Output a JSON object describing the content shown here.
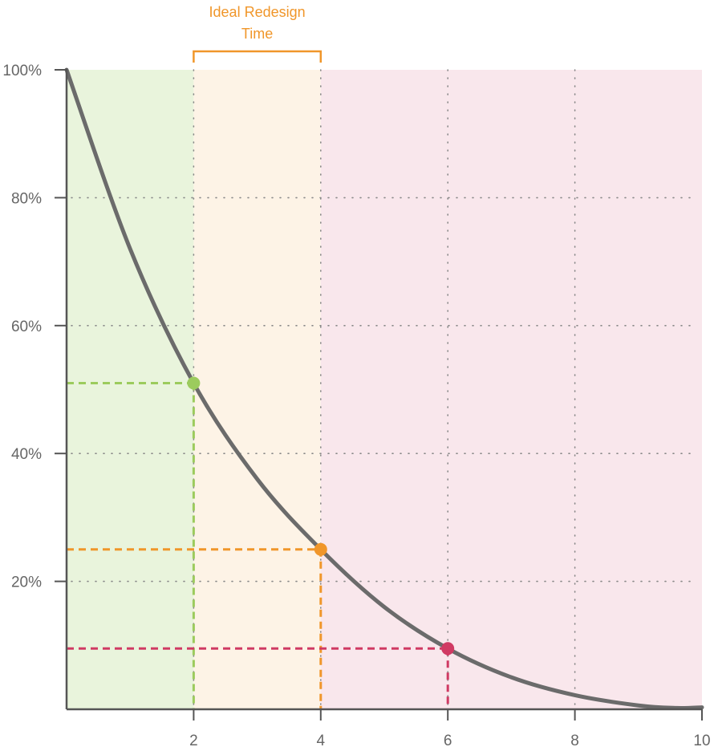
{
  "chart_data": {
    "type": "line",
    "title": "",
    "xlabel": "",
    "ylabel": "",
    "xlim": [
      0,
      10
    ],
    "ylim": [
      0,
      100
    ],
    "x_ticks": [
      "2",
      "4",
      "6",
      "8",
      "10"
    ],
    "y_ticks": [
      "20%",
      "40%",
      "60%",
      "80%",
      "100%"
    ],
    "grid": "dotted",
    "series": [
      {
        "x": [
          0,
          1,
          2,
          3,
          4,
          5,
          6,
          7,
          8,
          9,
          9.6,
          10
        ],
        "y": [
          100,
          72,
          51,
          36,
          25,
          16,
          9.5,
          5,
          2.2,
          0.6,
          0.2,
          0.3
        ]
      }
    ],
    "regions": [
      {
        "x": [
          0,
          2
        ],
        "color": "#e9f4dc"
      },
      {
        "x": [
          2,
          4
        ],
        "color": "#fdf3e6"
      },
      {
        "x": [
          4,
          10
        ],
        "color": "#f9e7ec"
      }
    ],
    "highlight_points": [
      {
        "x": 2,
        "y": 51,
        "color": "#9ccb5d"
      },
      {
        "x": 4,
        "y": 25,
        "color": "#f0962a"
      },
      {
        "x": 6,
        "y": 9.5,
        "color": "#d03a63"
      }
    ],
    "annotation": {
      "line1": "Ideal Redesign",
      "line2": "Time",
      "x_range": [
        2,
        4
      ],
      "color": "#f0962a"
    },
    "colors": {
      "curve": "#6b6b6b",
      "axis": "#555555",
      "grid": "#888888",
      "tick_text": "#666666"
    }
  }
}
